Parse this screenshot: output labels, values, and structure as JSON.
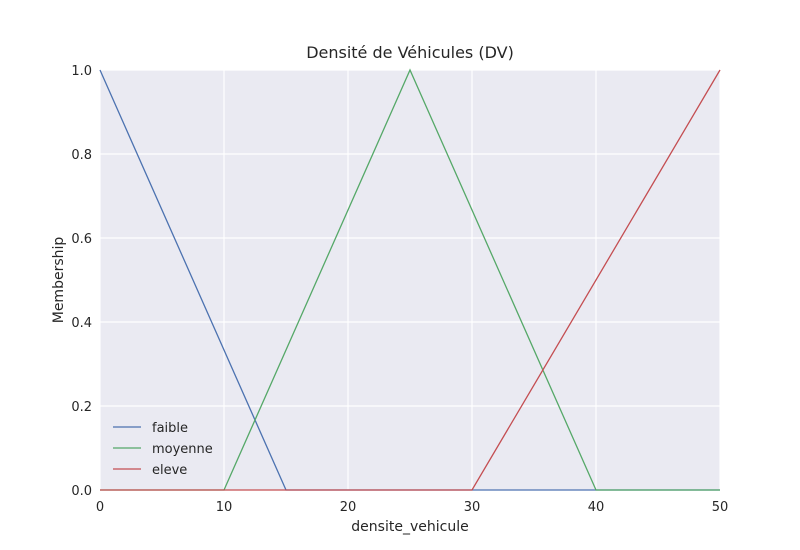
{
  "chart_data": {
    "type": "line",
    "title": "Densité de Véhicules (DV)",
    "xlabel": "densite_vehicule",
    "ylabel": "Membership",
    "xlim": [
      0,
      50
    ],
    "ylim": [
      0,
      1
    ],
    "x_ticks": [
      "0",
      "10",
      "20",
      "30",
      "40",
      "50"
    ],
    "y_ticks": [
      "0.0",
      "0.2",
      "0.4",
      "0.6",
      "0.8",
      "1.0"
    ],
    "grid": true,
    "legend_position": "lower-left",
    "series": [
      {
        "name": "faible",
        "color": "#4c72b0",
        "x": [
          0,
          15,
          50
        ],
        "y": [
          1,
          0,
          0
        ]
      },
      {
        "name": "moyenne",
        "color": "#55a868",
        "x": [
          0,
          10,
          25,
          40,
          50
        ],
        "y": [
          0,
          0,
          1,
          0,
          0
        ]
      },
      {
        "name": "eleve",
        "color": "#c44e52",
        "x": [
          0,
          30,
          50
        ],
        "y": [
          0,
          0,
          1
        ]
      }
    ]
  }
}
